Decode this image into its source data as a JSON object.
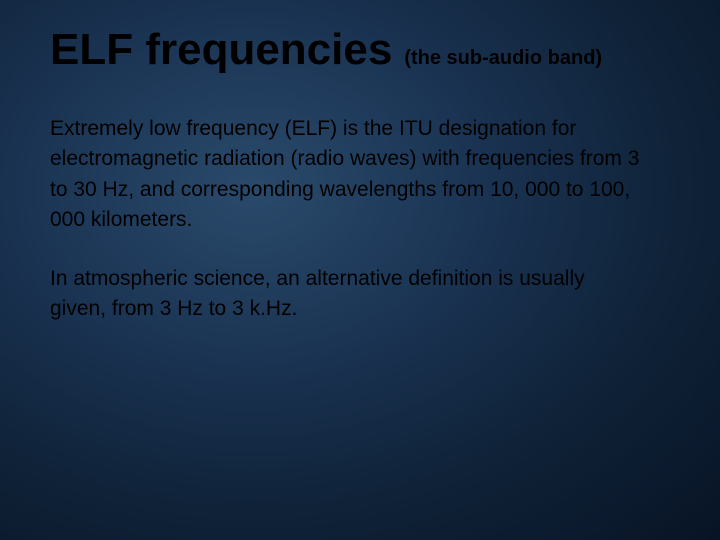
{
  "slide": {
    "title": "ELF frequencies",
    "subtitle": "(the sub-audio band)",
    "paragraphs": [
      "Extremely low frequency (ELF) is the ITU designation for electromagnetic radiation (radio waves) with frequencies from 3 to 30 Hz, and corresponding wavelengths from 10, 000 to 100, 000 kilometers.",
      "In atmospheric science, an alternative definition is usually given, from 3 Hz to 3 k.Hz."
    ],
    "style": {
      "background_gradient": [
        "#2a4a6b",
        "#1a3352",
        "#0f2238",
        "#081425"
      ],
      "title_fontsize": 44,
      "title_color": "#000000",
      "subtitle_fontsize": 20,
      "subtitle_color": "#000000",
      "body_fontsize": 21,
      "body_color": "#000000",
      "font_family": "Arial"
    }
  }
}
